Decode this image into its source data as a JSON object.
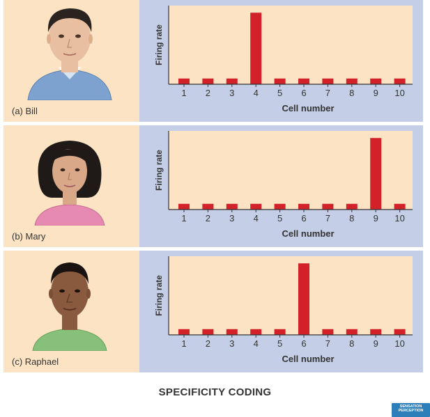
{
  "panels": [
    {
      "label": "(a) Bill",
      "portrait": "man-face-illustration",
      "shirt_color": "#7ea2cf",
      "hair_color": "#2a2320",
      "skin_color": "#e8bfa0"
    },
    {
      "label": "(b) Mary",
      "portrait": "woman-face-illustration",
      "shirt_color": "#e68ab2",
      "hair_color": "#1f1a18",
      "skin_color": "#d9a888"
    },
    {
      "label": "(c) Raphael",
      "portrait": "man-face-illustration",
      "shirt_color": "#86c07a",
      "hair_color": "#1a1210",
      "skin_color": "#8a5a3e"
    }
  ],
  "footer_title": "SPECIFICITY CODING",
  "logo_text": [
    "SENSATION",
    "PERCEPTION"
  ],
  "colors": {
    "bar": "#d22128",
    "plot_bg": "#fbe3c3",
    "panel_bg": "#c4cee6",
    "portrait_bg": "#fbe3c3"
  },
  "chart_data": [
    {
      "type": "bar",
      "xlabel": "Cell number",
      "ylabel": "Firing rate",
      "categories": [
        "1",
        "2",
        "3",
        "4",
        "5",
        "6",
        "7",
        "8",
        "9",
        "10"
      ],
      "values": [
        0.08,
        0.08,
        0.08,
        1.0,
        0.08,
        0.08,
        0.08,
        0.08,
        0.08,
        0.08
      ],
      "ylim": [
        0,
        1.1
      ]
    },
    {
      "type": "bar",
      "xlabel": "Cell number",
      "ylabel": "Firing rate",
      "categories": [
        "1",
        "2",
        "3",
        "4",
        "5",
        "6",
        "7",
        "8",
        "9",
        "10"
      ],
      "values": [
        0.08,
        0.08,
        0.08,
        0.08,
        0.08,
        0.08,
        0.08,
        0.08,
        1.0,
        0.08
      ],
      "ylim": [
        0,
        1.1
      ]
    },
    {
      "type": "bar",
      "xlabel": "Cell number",
      "ylabel": "Firing rate",
      "categories": [
        "1",
        "2",
        "3",
        "4",
        "5",
        "6",
        "7",
        "8",
        "9",
        "10"
      ],
      "values": [
        0.08,
        0.08,
        0.08,
        0.08,
        0.08,
        1.0,
        0.08,
        0.08,
        0.08,
        0.08
      ],
      "ylim": [
        0,
        1.1
      ]
    }
  ]
}
